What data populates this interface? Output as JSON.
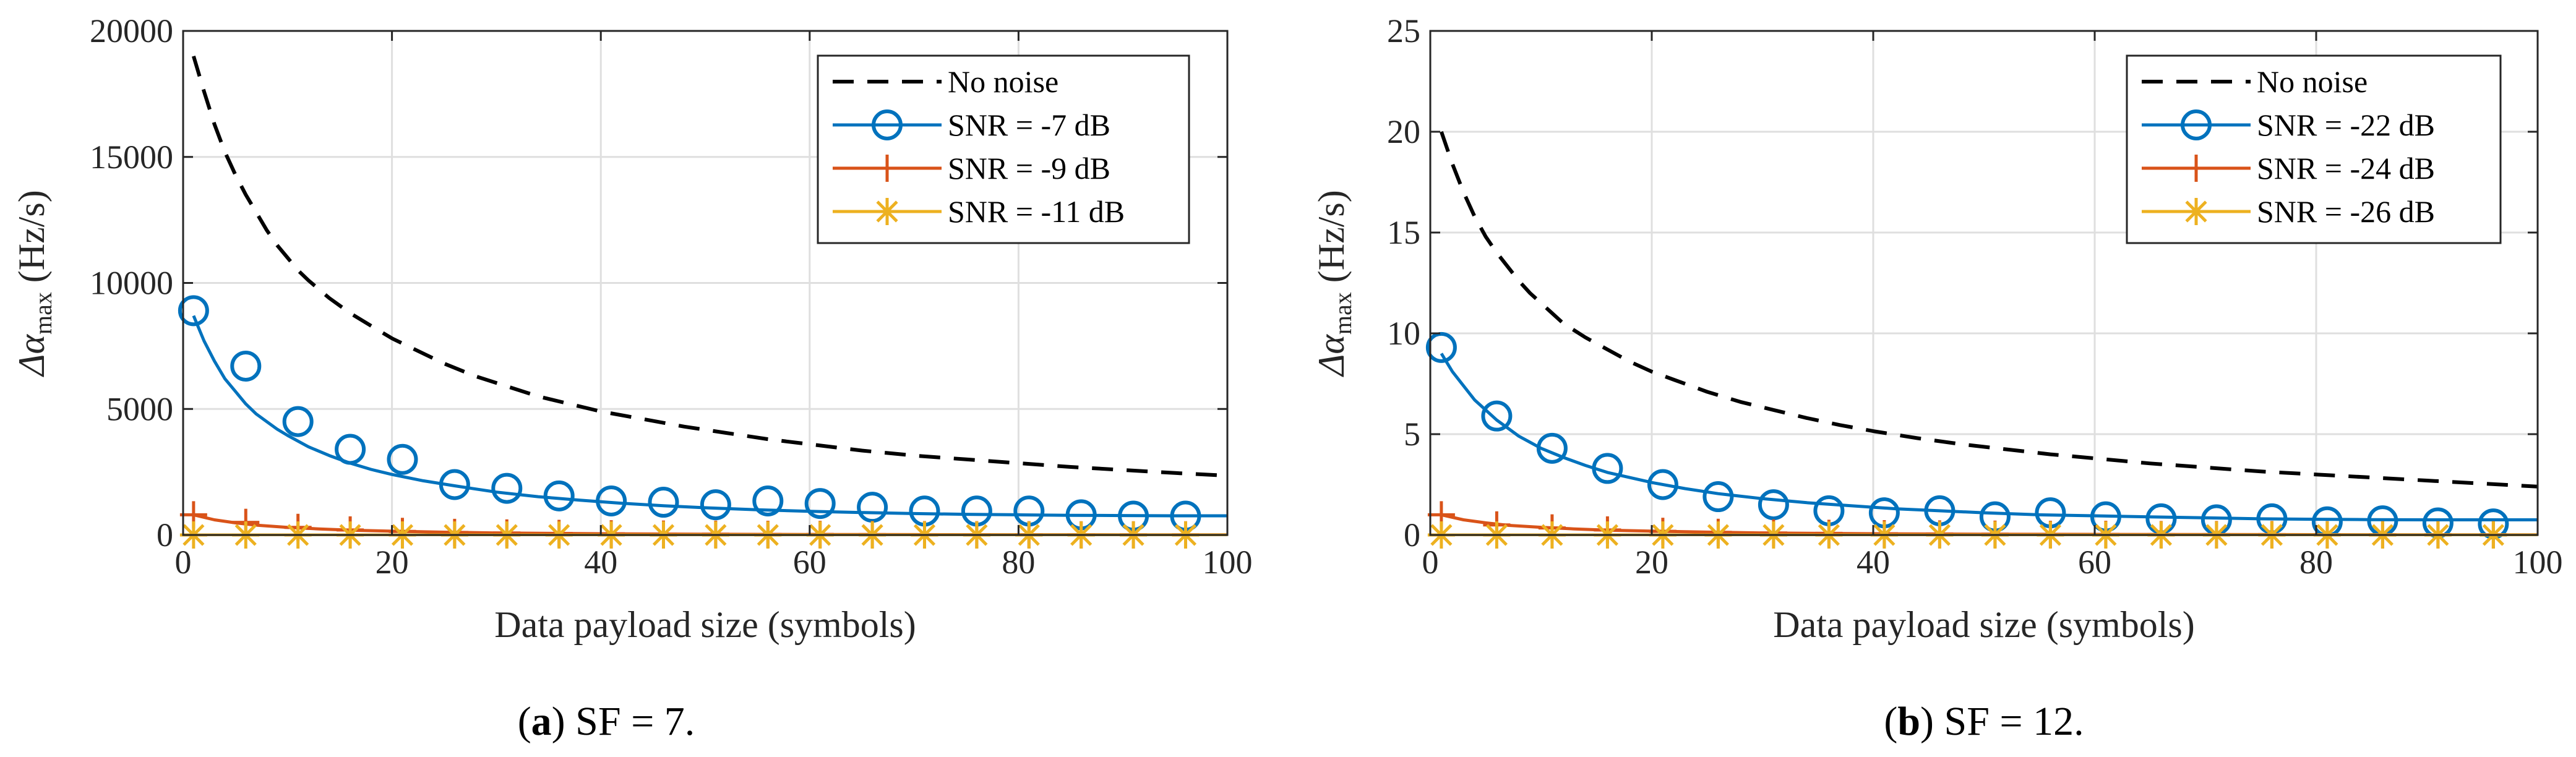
{
  "chart_data": [
    {
      "type": "line",
      "panel_tag": "a",
      "caption": "SF = 7.",
      "caption_open": "(",
      "caption_close": ")",
      "xlabel": "Data payload size (symbols)",
      "ylabel_symbol": "Δα",
      "ylabel_subscript": "max",
      "ylabel_unit": "(Hz/s)",
      "xlim": [
        0,
        100
      ],
      "ylim": [
        0,
        20000
      ],
      "xticks": [
        0,
        20,
        40,
        60,
        80,
        100
      ],
      "yticks": [
        0,
        5000,
        10000,
        15000,
        20000
      ],
      "grid": true,
      "legend_position": "top-right",
      "series": [
        {
          "name": "No noise",
          "style": "dashed",
          "color": "#000000",
          "marker": "none",
          "x": [
            1,
            2,
            3,
            4,
            5,
            6,
            7,
            8,
            9,
            10,
            11,
            12,
            14,
            16,
            18,
            20,
            22,
            25,
            28,
            31,
            34,
            37,
            40,
            44,
            48,
            52,
            56,
            60,
            65,
            70,
            75,
            80,
            85,
            90,
            95,
            100
          ],
          "y": [
            19000,
            17600,
            16300,
            15200,
            14300,
            13500,
            12800,
            12100,
            11500,
            11000,
            10500,
            10100,
            9400,
            8800,
            8300,
            7800,
            7400,
            6800,
            6300,
            5900,
            5500,
            5200,
            4900,
            4600,
            4300,
            4050,
            3800,
            3600,
            3350,
            3150,
            3000,
            2850,
            2700,
            2580,
            2460,
            2350
          ]
        },
        {
          "name": "SNR = -7 dB",
          "style": "solid",
          "color": "#0072bd",
          "marker": "circle",
          "x": [
            1,
            2,
            3,
            4,
            5,
            6,
            7,
            8,
            9,
            10,
            12,
            14,
            16,
            18,
            20,
            23,
            26,
            30,
            34,
            38,
            42,
            46,
            50,
            55,
            60,
            65,
            70,
            75,
            80,
            85,
            90,
            95,
            100
          ],
          "y": [
            8700,
            7700,
            6900,
            6200,
            5700,
            5200,
            4800,
            4500,
            4200,
            3950,
            3500,
            3150,
            2850,
            2600,
            2400,
            2150,
            1950,
            1700,
            1520,
            1380,
            1260,
            1160,
            1080,
            1000,
            940,
            890,
            850,
            820,
            800,
            780,
            770,
            760,
            760
          ],
          "marker_x": [
            1,
            6,
            11,
            16,
            21,
            26,
            31,
            36,
            41,
            46,
            51,
            56,
            61,
            66,
            71,
            76,
            81,
            86,
            91,
            96
          ],
          "marker_y": [
            8900,
            6700,
            4500,
            3400,
            3000,
            2000,
            1850,
            1550,
            1350,
            1300,
            1200,
            1350,
            1250,
            1100,
            950,
            950,
            950,
            800,
            750,
            750
          ]
        },
        {
          "name": "SNR = -9 dB",
          "style": "solid",
          "color": "#d95319",
          "marker": "plus",
          "x": [
            1,
            3,
            5,
            7,
            10,
            13,
            16,
            20,
            25,
            30,
            40,
            50,
            60,
            70,
            80,
            90,
            100
          ],
          "y": [
            800,
            600,
            480,
            390,
            300,
            240,
            190,
            150,
            110,
            80,
            50,
            30,
            20,
            15,
            10,
            8,
            5
          ],
          "marker_x": [
            1,
            6,
            11,
            16,
            21,
            26,
            31,
            36,
            41,
            46,
            51,
            56,
            61,
            66,
            71,
            76,
            81,
            86,
            91,
            96
          ],
          "marker_y": [
            800,
            500,
            300,
            200,
            140,
            100,
            80,
            60,
            45,
            35,
            30,
            25,
            20,
            15,
            12,
            10,
            8,
            7,
            6,
            5
          ]
        },
        {
          "name": "SNR = -11 dB",
          "style": "solid",
          "color": "#edb120",
          "marker": "asterisk",
          "x": [
            0,
            100
          ],
          "y": [
            0,
            0
          ],
          "marker_x": [
            1,
            6,
            11,
            16,
            21,
            26,
            31,
            36,
            41,
            46,
            51,
            56,
            61,
            66,
            71,
            76,
            81,
            86,
            91,
            96
          ],
          "marker_y": [
            0,
            0,
            0,
            0,
            0,
            0,
            0,
            0,
            0,
            0,
            0,
            0,
            0,
            0,
            0,
            0,
            0,
            0,
            0,
            0
          ]
        }
      ]
    },
    {
      "type": "line",
      "panel_tag": "b",
      "caption": "SF = 12.",
      "caption_open": "(",
      "caption_close": ")",
      "xlabel": "Data payload size (symbols)",
      "ylabel_symbol": "Δα",
      "ylabel_subscript": "max",
      "ylabel_unit": "(Hz/s)",
      "xlim": [
        0,
        100
      ],
      "ylim": [
        0,
        25
      ],
      "xticks": [
        0,
        20,
        40,
        60,
        80,
        100
      ],
      "yticks": [
        0,
        5,
        10,
        15,
        20,
        25
      ],
      "grid": true,
      "legend_position": "top-right",
      "series": [
        {
          "name": "No noise",
          "style": "dashed",
          "color": "#000000",
          "marker": "none",
          "x": [
            1,
            2,
            3,
            4,
            5,
            6,
            7,
            8,
            9,
            10,
            11,
            12,
            14,
            16,
            18,
            20,
            22,
            25,
            28,
            31,
            34,
            37,
            40,
            44,
            48,
            52,
            56,
            60,
            65,
            70,
            75,
            80,
            85,
            90,
            95,
            100
          ],
          "y": [
            20.0,
            18.4,
            17.0,
            15.8,
            14.8,
            14.0,
            13.3,
            12.6,
            12.0,
            11.5,
            11.0,
            10.5,
            9.8,
            9.2,
            8.6,
            8.1,
            7.7,
            7.1,
            6.6,
            6.2,
            5.8,
            5.45,
            5.15,
            4.8,
            4.5,
            4.25,
            4.0,
            3.8,
            3.55,
            3.35,
            3.15,
            3.0,
            2.85,
            2.7,
            2.55,
            2.4
          ]
        },
        {
          "name": "SNR = -22 dB",
          "style": "solid",
          "color": "#0072bd",
          "marker": "circle",
          "x": [
            1,
            2,
            3,
            4,
            5,
            6,
            7,
            8,
            9,
            10,
            12,
            14,
            16,
            18,
            20,
            23,
            26,
            30,
            34,
            38,
            42,
            46,
            50,
            55,
            60,
            65,
            70,
            75,
            80,
            85,
            90,
            95,
            100
          ],
          "y": [
            9.0,
            8.1,
            7.4,
            6.7,
            6.2,
            5.7,
            5.3,
            4.9,
            4.6,
            4.3,
            3.85,
            3.45,
            3.1,
            2.85,
            2.6,
            2.3,
            2.05,
            1.8,
            1.6,
            1.45,
            1.3,
            1.2,
            1.1,
            1.0,
            0.95,
            0.9,
            0.85,
            0.8,
            0.78,
            0.76,
            0.75,
            0.75,
            0.75
          ],
          "marker_x": [
            1,
            6,
            11,
            16,
            21,
            26,
            31,
            36,
            41,
            46,
            51,
            56,
            61,
            66,
            71,
            76,
            81,
            86,
            91,
            96
          ],
          "marker_y": [
            9.3,
            5.9,
            4.3,
            3.3,
            2.5,
            1.9,
            1.5,
            1.2,
            1.1,
            1.2,
            0.9,
            1.1,
            0.9,
            0.8,
            0.75,
            0.8,
            0.65,
            0.7,
            0.6,
            0.55
          ]
        },
        {
          "name": "SNR = -24 dB",
          "style": "solid",
          "color": "#d95319",
          "marker": "plus",
          "x": [
            1,
            3,
            5,
            7,
            10,
            13,
            16,
            20,
            25,
            30,
            40,
            50,
            60,
            70,
            80,
            90,
            100
          ],
          "y": [
            1.0,
            0.75,
            0.6,
            0.48,
            0.38,
            0.3,
            0.24,
            0.19,
            0.14,
            0.1,
            0.06,
            0.04,
            0.03,
            0.02,
            0.015,
            0.01,
            0.01
          ],
          "marker_x": [
            1,
            6,
            11,
            16,
            21,
            26,
            31,
            36,
            41,
            46,
            51,
            56,
            61,
            66,
            71,
            76,
            81,
            86,
            91,
            96
          ],
          "marker_y": [
            1.0,
            0.5,
            0.35,
            0.25,
            0.18,
            0.13,
            0.1,
            0.08,
            0.06,
            0.05,
            0.04,
            0.03,
            0.03,
            0.02,
            0.02,
            0.02,
            0.01,
            0.01,
            0.01,
            0.01
          ]
        },
        {
          "name": "SNR = -26 dB",
          "style": "solid",
          "color": "#edb120",
          "marker": "asterisk",
          "x": [
            0,
            100
          ],
          "y": [
            0,
            0
          ],
          "marker_x": [
            1,
            6,
            11,
            16,
            21,
            26,
            31,
            36,
            41,
            46,
            51,
            56,
            61,
            66,
            71,
            76,
            81,
            86,
            91,
            96
          ],
          "marker_y": [
            0,
            0,
            0,
            0,
            0,
            0,
            0,
            0,
            0,
            0,
            0,
            0,
            0,
            0,
            0,
            0,
            0,
            0,
            0,
            0
          ]
        }
      ]
    }
  ]
}
